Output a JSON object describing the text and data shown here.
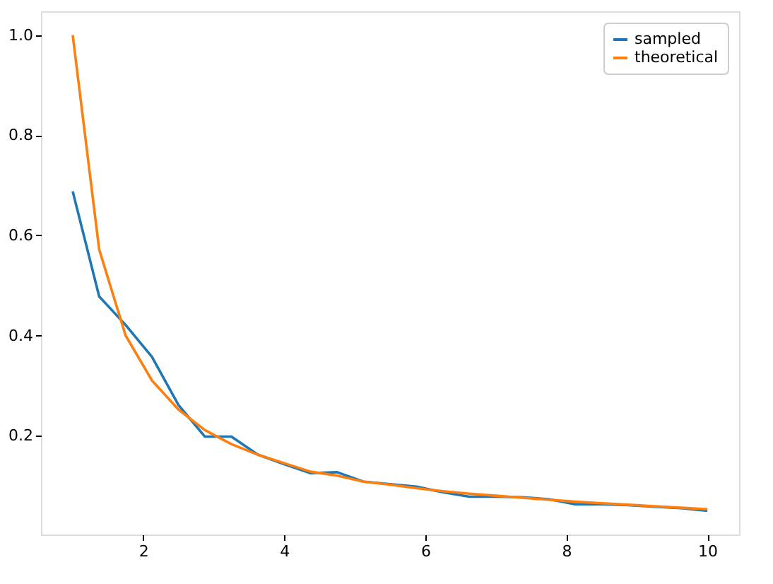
{
  "chart_data": {
    "type": "line",
    "x": [
      1,
      1.375,
      1.75,
      2.125,
      2.5,
      2.875,
      3.25,
      3.625,
      4,
      4.375,
      4.75,
      5.125,
      5.5,
      5.875,
      6.25,
      6.625,
      7,
      7.375,
      7.75,
      8.125,
      8.5,
      8.875,
      9.25,
      9.625,
      10
    ],
    "series": [
      {
        "name": "sampled",
        "color": "#1f77b4",
        "values": [
          0.688,
          0.478,
          0.421,
          0.357,
          0.261,
          0.198,
          0.198,
          0.162,
          0.143,
          0.125,
          0.127,
          0.108,
          0.103,
          0.098,
          0.087,
          0.078,
          0.078,
          0.077,
          0.073,
          0.063,
          0.063,
          0.061,
          0.058,
          0.055,
          0.05
        ]
      },
      {
        "name": "theoretical",
        "color": "#ff7f0e",
        "values": [
          1.0,
          0.572,
          0.4,
          0.31,
          0.252,
          0.211,
          0.183,
          0.162,
          0.145,
          0.128,
          0.12,
          0.108,
          0.102,
          0.095,
          0.089,
          0.084,
          0.08,
          0.076,
          0.072,
          0.068,
          0.065,
          0.062,
          0.059,
          0.056,
          0.053
        ]
      }
    ],
    "xlim": [
      0.55,
      10.45
    ],
    "xticks": [
      2,
      4,
      6,
      8,
      10
    ],
    "ylim": [
      0.0025,
      1.0475
    ],
    "yticks": [
      0.2,
      0.4,
      0.6,
      0.8,
      {
        "value": 1.0,
        "label": "1.0"
      }
    ],
    "legend": "top right",
    "grid": false,
    "marker": "none",
    "line_style": "solid"
  }
}
